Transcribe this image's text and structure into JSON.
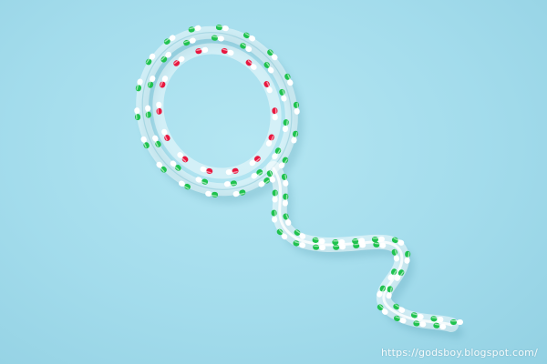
{
  "photo": {
    "subject": "capsules-in-sperm-shaped-tube",
    "background_color": "#a6deed",
    "capsule_colors": {
      "green": "#1fc24e",
      "red": "#e8173f",
      "white": "#ffffff"
    }
  },
  "watermark": {
    "text": "https://godsboy.blogspot.com/"
  }
}
